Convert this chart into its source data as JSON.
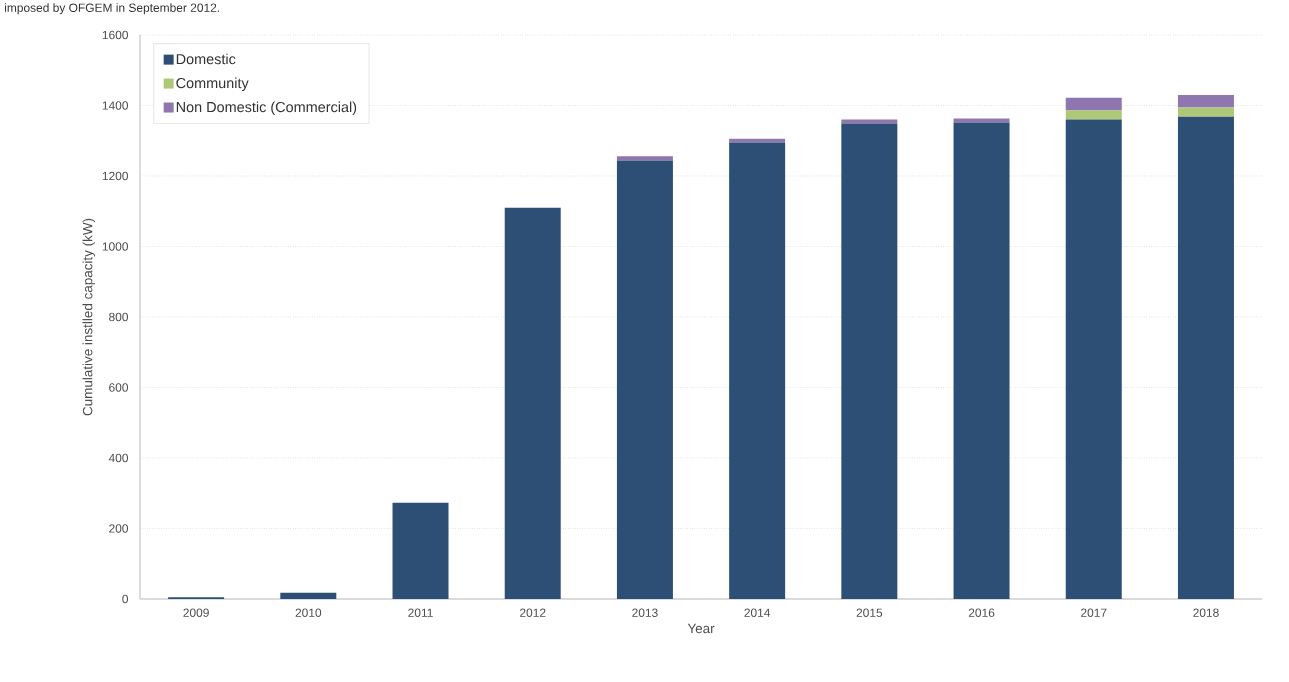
{
  "chart_data": {
    "type": "bar",
    "stacked": true,
    "xlabel": "Year",
    "ylabel": "Cumulative  instlled capacity (kW)",
    "annotations": [
      "imposed by OFGEM in September 2012."
    ],
    "categories": [
      "2009",
      "2010",
      "2011",
      "2012",
      "2013",
      "2014",
      "2015",
      "2016",
      "2017",
      "2018"
    ],
    "series": [
      {
        "name": "Domestic",
        "color": "#2e4f75",
        "values": [
          5,
          18,
          273,
          1110,
          1244,
          1295,
          1349,
          1352,
          1360,
          1368
        ]
      },
      {
        "name": "Community",
        "color": "#adc978",
        "values": [
          0,
          0,
          0,
          0,
          0,
          0,
          0,
          0,
          26,
          26
        ]
      },
      {
        "name": "Non Domestic (Commercial)",
        "color": "#8f76ae",
        "values": [
          0,
          0,
          0,
          0,
          12,
          11,
          11,
          11,
          36,
          36
        ]
      }
    ],
    "ylim": [
      0,
      1600
    ],
    "yticks": [
      0,
      200,
      400,
      600,
      800,
      1000,
      1200,
      1400,
      1600
    ],
    "grid": "y",
    "legend": "top left"
  }
}
